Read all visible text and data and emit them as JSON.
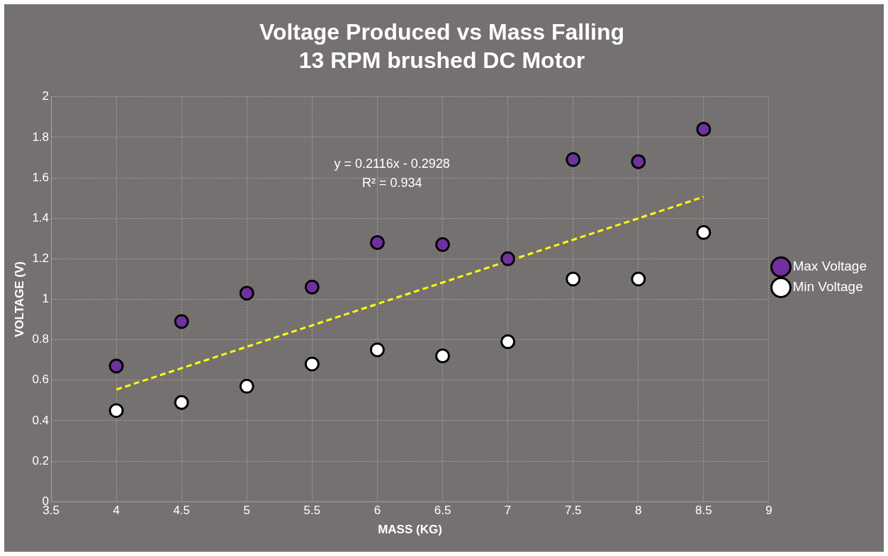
{
  "chart_data": {
    "type": "scatter",
    "title": "Voltage Produced vs Mass Falling",
    "subtitle": "13 RPM brushed DC Motor",
    "xlabel": "MASS (KG)",
    "ylabel": "VOLTAGE (V)",
    "xlim": [
      3.5,
      9
    ],
    "xticks": [
      3.5,
      4,
      4.5,
      5,
      5.5,
      6,
      6.5,
      7,
      7.5,
      8,
      8.5,
      9
    ],
    "ylim": [
      0,
      2
    ],
    "yticks": [
      0,
      0.2,
      0.4,
      0.6,
      0.8,
      1,
      1.2,
      1.4,
      1.6,
      1.8,
      2
    ],
    "grid": true,
    "legend": "right",
    "marker": "circle",
    "annotations": [
      "y = 0.2116x - 0.2928",
      "R² = 0.934"
    ],
    "series": [
      {
        "name": "Max Voltage",
        "color": "#7030a0",
        "x": [
          4,
          4.5,
          5,
          5.5,
          6,
          6.5,
          7,
          7.5,
          8,
          8.5
        ],
        "values": [
          0.67,
          0.89,
          1.03,
          1.06,
          1.28,
          1.27,
          1.2,
          1.69,
          1.68,
          1.84
        ]
      },
      {
        "name": "Min Voltage",
        "color": "#ffffff",
        "x": [
          4,
          4.5,
          5,
          5.5,
          6,
          6.5,
          7,
          7.5,
          8,
          8.5
        ],
        "values": [
          0.45,
          0.49,
          0.57,
          0.68,
          0.75,
          0.72,
          0.79,
          1.1,
          1.1,
          1.33
        ]
      },
      {
        "type": "line",
        "color": "#ffff00",
        "line_style": "dashed",
        "marker": "none",
        "x": [
          4,
          8.5
        ],
        "values": [
          0.5536,
          1.5058
        ]
      }
    ]
  }
}
